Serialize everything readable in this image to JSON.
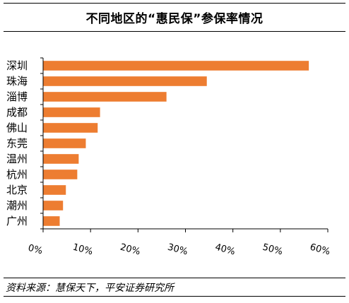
{
  "title": "不同地区的“惠民保”参保率情况",
  "source": "资料来源：慧保天下，平安证券研究所",
  "chart_data": {
    "type": "bar",
    "orientation": "horizontal",
    "title": "不同地区的“惠民保”参保率情况",
    "categories": [
      "深圳",
      "珠海",
      "淄博",
      "成都",
      "佛山",
      "东莞",
      "温州",
      "杭州",
      "北京",
      "潮州",
      "广州"
    ],
    "values": [
      0.56,
      0.345,
      0.26,
      0.12,
      0.115,
      0.09,
      0.075,
      0.072,
      0.048,
      0.042,
      0.035
    ],
    "xticks": [
      0,
      0.1,
      0.2,
      0.3,
      0.4,
      0.5,
      0.6
    ],
    "xtick_labels": [
      "0%",
      "10%",
      "20%",
      "30%",
      "40%",
      "50%",
      "60%"
    ],
    "xlim": [
      0,
      0.6
    ],
    "xlabel": "",
    "ylabel": "",
    "bar_color": "#ED7D31",
    "grid": false,
    "legend": "none"
  }
}
